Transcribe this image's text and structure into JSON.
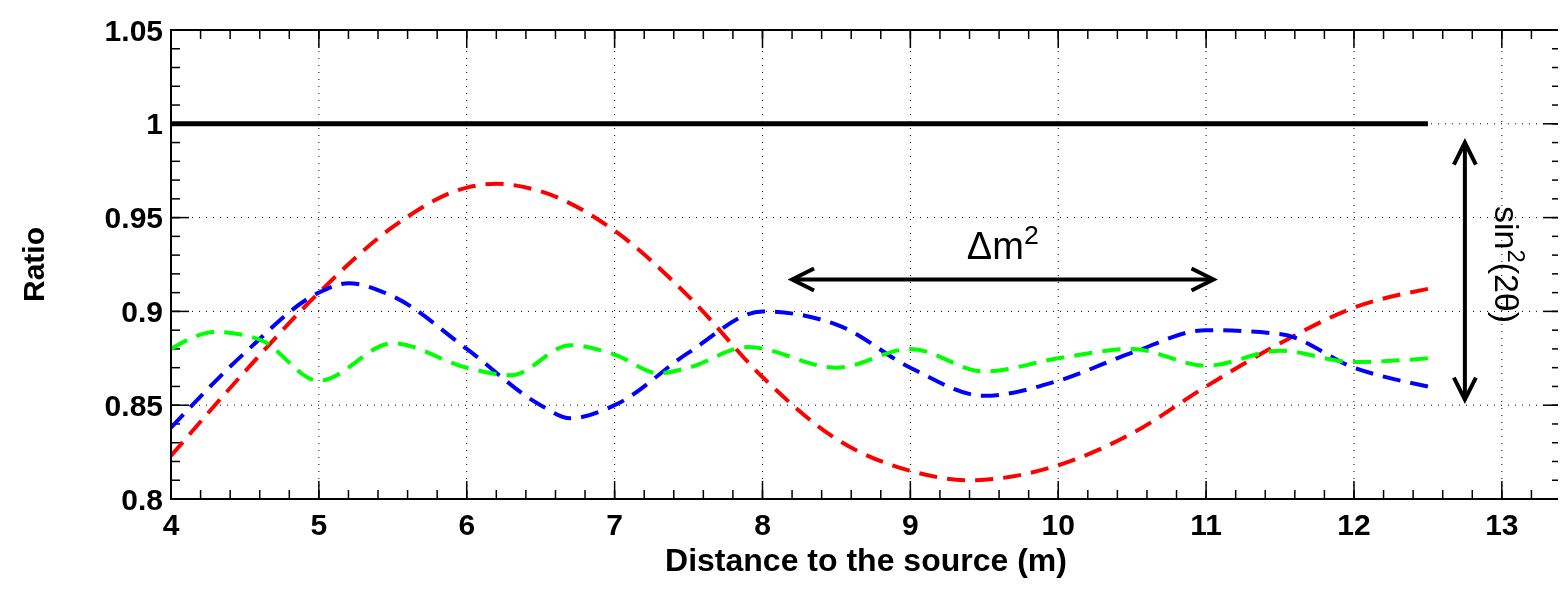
{
  "chart_data": {
    "type": "line",
    "xlabel": "Distance to the source (m)",
    "ylabel": "Ratio",
    "xlim": [
      4,
      13.4
    ],
    "ylim": [
      0.8,
      1.05
    ],
    "xticks": [
      4,
      5,
      6,
      7,
      8,
      9,
      10,
      11,
      12,
      13
    ],
    "yticks": [
      0.8,
      0.85,
      0.9,
      0.95,
      1,
      1.05
    ],
    "grid": true,
    "line_style": "dashed",
    "annotations": [
      "Δm$^{2}$",
      "sin$^{2}$(2θ)"
    ],
    "series": [
      {
        "color": "#000000",
        "line_style": "solid",
        "x": [
          4,
          12.5
        ],
        "values": [
          1,
          1
        ]
      },
      {
        "color": "#ff0000",
        "x": [
          4,
          4.5,
          5,
          5.5,
          6,
          6.2,
          6.5,
          7,
          7.5,
          8,
          8.5,
          9,
          9.4,
          10,
          10.5,
          11,
          11.5,
          12,
          12.5
        ],
        "values": [
          0.823,
          0.868,
          0.91,
          0.945,
          0.966,
          0.968,
          0.964,
          0.943,
          0.908,
          0.865,
          0.832,
          0.815,
          0.81,
          0.818,
          0.835,
          0.86,
          0.883,
          0.902,
          0.912
        ]
      },
      {
        "color": "#0000ff",
        "x": [
          4,
          4.5,
          5,
          5.2,
          5.5,
          6,
          6.5,
          6.7,
          7,
          7.5,
          8,
          8.5,
          9,
          9.5,
          10,
          10.5,
          11,
          11.5,
          12,
          12.5
        ],
        "values": [
          0.838,
          0.878,
          0.91,
          0.915,
          0.908,
          0.88,
          0.85,
          0.843,
          0.85,
          0.878,
          0.9,
          0.893,
          0.87,
          0.855,
          0.863,
          0.878,
          0.89,
          0.888,
          0.87,
          0.86
        ]
      },
      {
        "color": "#00ff00",
        "x": [
          4,
          4.3,
          4.6,
          5,
          5.5,
          6,
          6.3,
          6.7,
          7,
          7.3,
          7.5,
          7.9,
          8.5,
          9,
          9.5,
          10,
          10.5,
          11,
          11.5,
          12,
          12.5
        ],
        "values": [
          0.88,
          0.889,
          0.885,
          0.863,
          0.883,
          0.87,
          0.866,
          0.882,
          0.877,
          0.867,
          0.87,
          0.881,
          0.87,
          0.88,
          0.868,
          0.875,
          0.88,
          0.871,
          0.879,
          0.873,
          0.875
        ]
      }
    ]
  }
}
